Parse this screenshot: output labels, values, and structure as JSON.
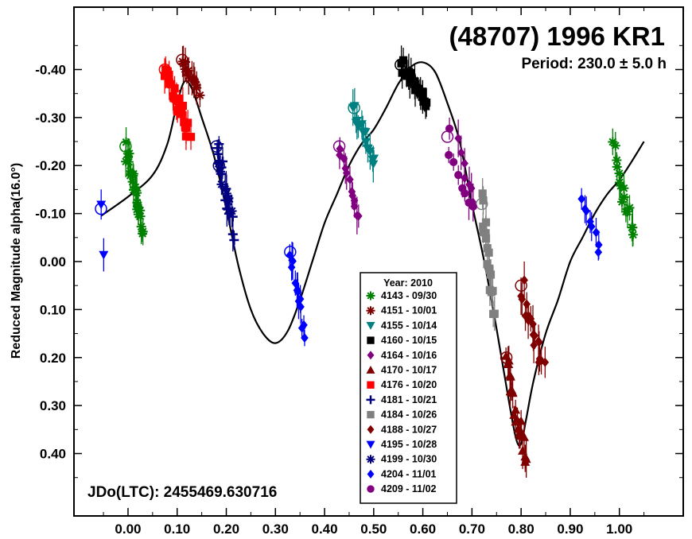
{
  "chart_data": {
    "type": "scatter",
    "title": "(48707) 1996 KR1",
    "subtitle": "Period: 230.0 ± 5.0 h",
    "ylabel": "Reduced Magnitude alpha(16.0°)",
    "xlabel": "",
    "annotation": "JDo(LTC): 2455469.630716",
    "xlim": [
      -0.11,
      1.13
    ],
    "ylim": [
      0.53,
      -0.53
    ],
    "y_inverted": true,
    "x_ticks": [
      "0.00",
      "0.10",
      "0.20",
      "0.30",
      "0.40",
      "0.50",
      "0.60",
      "0.70",
      "0.80",
      "0.90",
      "1.00"
    ],
    "y_ticks": [
      "-0.40",
      "-0.30",
      "-0.20",
      "-0.10",
      "0.00",
      "0.10",
      "0.20",
      "0.30",
      "0.40"
    ],
    "legend": {
      "title": "Year: 2010",
      "placement": "bottom-center",
      "entries": [
        {
          "label": "4143 - 09/30",
          "color": "#008000",
          "marker": "asterisk"
        },
        {
          "label": "4151 - 10/01",
          "color": "#800000",
          "marker": "asterisk"
        },
        {
          "label": "4155 - 10/14",
          "color": "#008080",
          "marker": "triangle-down"
        },
        {
          "label": "4160 - 10/15",
          "color": "#000000",
          "marker": "square"
        },
        {
          "label": "4164 - 10/16",
          "color": "#800080",
          "marker": "diamond"
        },
        {
          "label": "4170 - 10/17",
          "color": "#800000",
          "marker": "triangle-up"
        },
        {
          "label": "4176 - 10/20",
          "color": "#ff0000",
          "marker": "square"
        },
        {
          "label": "4181 - 10/21",
          "color": "#000080",
          "marker": "plus"
        },
        {
          "label": "4184 - 10/26",
          "color": "#808080",
          "marker": "square"
        },
        {
          "label": "4188 - 10/27",
          "color": "#800000",
          "marker": "diamond"
        },
        {
          "label": "4195 - 10/28",
          "color": "#0000ff",
          "marker": "triangle-down"
        },
        {
          "label": "4199 - 10/30",
          "color": "#000080",
          "marker": "asterisk"
        },
        {
          "label": "4204 - 11/01",
          "color": "#0000ff",
          "marker": "diamond"
        },
        {
          "label": "4209 - 11/02",
          "color": "#800080",
          "marker": "circle"
        }
      ]
    },
    "fit_curve": [
      [
        -0.055,
        -0.095
      ],
      [
        0.0,
        -0.135
      ],
      [
        0.05,
        -0.18
      ],
      [
        0.08,
        -0.245
      ],
      [
        0.1,
        -0.33
      ],
      [
        0.115,
        -0.375
      ],
      [
        0.13,
        -0.36
      ],
      [
        0.15,
        -0.3
      ],
      [
        0.175,
        -0.22
      ],
      [
        0.2,
        -0.11
      ],
      [
        0.225,
        0.01
      ],
      [
        0.25,
        0.1
      ],
      [
        0.275,
        0.15
      ],
      [
        0.3,
        0.17
      ],
      [
        0.325,
        0.145
      ],
      [
        0.35,
        0.08
      ],
      [
        0.375,
        0.0
      ],
      [
        0.4,
        -0.08
      ],
      [
        0.425,
        -0.14
      ],
      [
        0.45,
        -0.2
      ],
      [
        0.475,
        -0.245
      ],
      [
        0.5,
        -0.275
      ],
      [
        0.525,
        -0.32
      ],
      [
        0.55,
        -0.37
      ],
      [
        0.575,
        -0.405
      ],
      [
        0.6,
        -0.415
      ],
      [
        0.625,
        -0.395
      ],
      [
        0.65,
        -0.33
      ],
      [
        0.675,
        -0.25
      ],
      [
        0.7,
        -0.12
      ],
      [
        0.725,
        0.0
      ],
      [
        0.75,
        0.14
      ],
      [
        0.775,
        0.29
      ],
      [
        0.79,
        0.37
      ],
      [
        0.8,
        0.38
      ],
      [
        0.81,
        0.33
      ],
      [
        0.825,
        0.25
      ],
      [
        0.85,
        0.15
      ],
      [
        0.875,
        0.08
      ],
      [
        0.9,
        0.0
      ],
      [
        0.925,
        -0.05
      ],
      [
        0.95,
        -0.1
      ],
      [
        0.975,
        -0.14
      ],
      [
        1.0,
        -0.17
      ],
      [
        1.02,
        -0.2
      ],
      [
        1.05,
        -0.25
      ]
    ],
    "series": [
      {
        "name": "4143 - 09/30",
        "x_range": [
          -0.005,
          0.03
        ],
        "y_range": [
          -0.24,
          -0.06
        ],
        "points": 26,
        "wrap": [
          0.985,
          1.03
        ]
      },
      {
        "name": "4151 - 10/01",
        "x_range": [
          0.11,
          0.145
        ],
        "y_range": [
          -0.42,
          -0.35
        ],
        "points": 14
      },
      {
        "name": "4155 - 10/14",
        "x_range": [
          0.46,
          0.5
        ],
        "y_range": [
          -0.32,
          -0.2
        ],
        "points": 16
      },
      {
        "name": "4160 - 10/15",
        "x_range": [
          0.555,
          0.61
        ],
        "y_range": [
          -0.41,
          -0.33
        ],
        "points": 22
      },
      {
        "name": "4164 - 10/16",
        "x_range": [
          0.43,
          0.47
        ],
        "y_range": [
          -0.24,
          -0.08
        ],
        "points": 12,
        "wrap": [
          0.67,
          0.705
        ]
      },
      {
        "name": "4170 - 10/17",
        "x_range": [
          0.77,
          0.81
        ],
        "y_range": [
          0.2,
          0.43
        ],
        "points": 24
      },
      {
        "name": "4176 - 10/20",
        "x_range": [
          0.075,
          0.125
        ],
        "y_range": [
          -0.4,
          -0.27
        ],
        "points": 24
      },
      {
        "name": "4181 - 10/21",
        "x_range": [
          0.18,
          0.215
        ],
        "y_range": [
          -0.24,
          -0.06
        ],
        "points": 18
      },
      {
        "name": "4184 - 10/26",
        "x_range": [
          0.72,
          0.745
        ],
        "y_range": [
          -0.12,
          0.1
        ],
        "points": 18
      },
      {
        "name": "4188 - 10/27",
        "x_range": [
          0.8,
          0.845
        ],
        "y_range": [
          0.05,
          0.23
        ],
        "points": 18
      },
      {
        "name": "4195 - 10/28",
        "x_range": [
          -0.055,
          -0.05
        ],
        "y_range": [
          -0.11,
          -0.02
        ],
        "points": 2
      },
      {
        "name": "4199 - 10/30",
        "x_range": [
          0.185,
          0.21
        ],
        "y_range": [
          -0.2,
          -0.1
        ],
        "points": 8
      },
      {
        "name": "4204 - 11/01",
        "x_range": [
          0.33,
          0.36
        ],
        "y_range": [
          -0.02,
          0.15
        ],
        "points": 14,
        "wrap": [
          0.925,
          0.96
        ]
      },
      {
        "name": "4209 - 11/02",
        "x_range": [
          0.65,
          0.7
        ],
        "y_range": [
          -0.26,
          -0.1
        ],
        "points": 8
      }
    ]
  }
}
